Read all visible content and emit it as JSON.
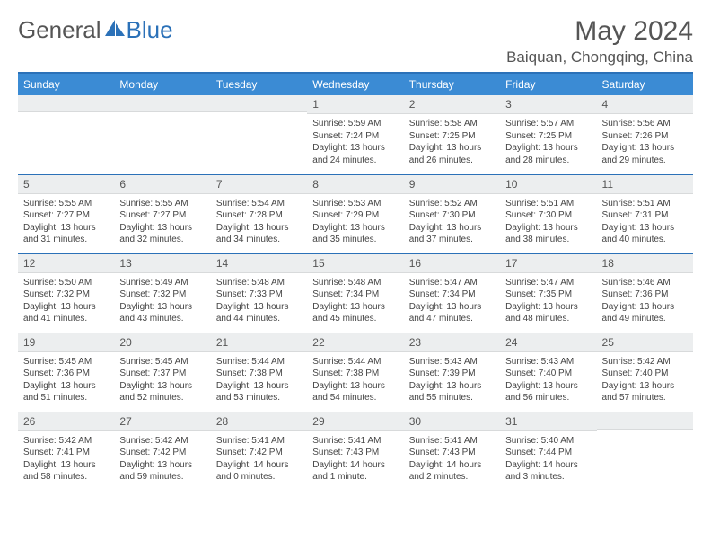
{
  "brand": {
    "name_part1": "General",
    "name_part2": "Blue"
  },
  "title": "May 2024",
  "location": "Baiquan, Chongqing, China",
  "day_headers": [
    "Sunday",
    "Monday",
    "Tuesday",
    "Wednesday",
    "Thursday",
    "Friday",
    "Saturday"
  ],
  "colors": {
    "header_bg": "#3b8bd4",
    "rule": "#2b71b8",
    "daynum_bg": "#eceeef"
  },
  "weeks": [
    [
      null,
      null,
      null,
      {
        "n": "1",
        "sr": "5:59 AM",
        "ss": "7:24 PM",
        "d": "13 hours and 24 minutes."
      },
      {
        "n": "2",
        "sr": "5:58 AM",
        "ss": "7:25 PM",
        "d": "13 hours and 26 minutes."
      },
      {
        "n": "3",
        "sr": "5:57 AM",
        "ss": "7:25 PM",
        "d": "13 hours and 28 minutes."
      },
      {
        "n": "4",
        "sr": "5:56 AM",
        "ss": "7:26 PM",
        "d": "13 hours and 29 minutes."
      }
    ],
    [
      {
        "n": "5",
        "sr": "5:55 AM",
        "ss": "7:27 PM",
        "d": "13 hours and 31 minutes."
      },
      {
        "n": "6",
        "sr": "5:55 AM",
        "ss": "7:27 PM",
        "d": "13 hours and 32 minutes."
      },
      {
        "n": "7",
        "sr": "5:54 AM",
        "ss": "7:28 PM",
        "d": "13 hours and 34 minutes."
      },
      {
        "n": "8",
        "sr": "5:53 AM",
        "ss": "7:29 PM",
        "d": "13 hours and 35 minutes."
      },
      {
        "n": "9",
        "sr": "5:52 AM",
        "ss": "7:30 PM",
        "d": "13 hours and 37 minutes."
      },
      {
        "n": "10",
        "sr": "5:51 AM",
        "ss": "7:30 PM",
        "d": "13 hours and 38 minutes."
      },
      {
        "n": "11",
        "sr": "5:51 AM",
        "ss": "7:31 PM",
        "d": "13 hours and 40 minutes."
      }
    ],
    [
      {
        "n": "12",
        "sr": "5:50 AM",
        "ss": "7:32 PM",
        "d": "13 hours and 41 minutes."
      },
      {
        "n": "13",
        "sr": "5:49 AM",
        "ss": "7:32 PM",
        "d": "13 hours and 43 minutes."
      },
      {
        "n": "14",
        "sr": "5:48 AM",
        "ss": "7:33 PM",
        "d": "13 hours and 44 minutes."
      },
      {
        "n": "15",
        "sr": "5:48 AM",
        "ss": "7:34 PM",
        "d": "13 hours and 45 minutes."
      },
      {
        "n": "16",
        "sr": "5:47 AM",
        "ss": "7:34 PM",
        "d": "13 hours and 47 minutes."
      },
      {
        "n": "17",
        "sr": "5:47 AM",
        "ss": "7:35 PM",
        "d": "13 hours and 48 minutes."
      },
      {
        "n": "18",
        "sr": "5:46 AM",
        "ss": "7:36 PM",
        "d": "13 hours and 49 minutes."
      }
    ],
    [
      {
        "n": "19",
        "sr": "5:45 AM",
        "ss": "7:36 PM",
        "d": "13 hours and 51 minutes."
      },
      {
        "n": "20",
        "sr": "5:45 AM",
        "ss": "7:37 PM",
        "d": "13 hours and 52 minutes."
      },
      {
        "n": "21",
        "sr": "5:44 AM",
        "ss": "7:38 PM",
        "d": "13 hours and 53 minutes."
      },
      {
        "n": "22",
        "sr": "5:44 AM",
        "ss": "7:38 PM",
        "d": "13 hours and 54 minutes."
      },
      {
        "n": "23",
        "sr": "5:43 AM",
        "ss": "7:39 PM",
        "d": "13 hours and 55 minutes."
      },
      {
        "n": "24",
        "sr": "5:43 AM",
        "ss": "7:40 PM",
        "d": "13 hours and 56 minutes."
      },
      {
        "n": "25",
        "sr": "5:42 AM",
        "ss": "7:40 PM",
        "d": "13 hours and 57 minutes."
      }
    ],
    [
      {
        "n": "26",
        "sr": "5:42 AM",
        "ss": "7:41 PM",
        "d": "13 hours and 58 minutes."
      },
      {
        "n": "27",
        "sr": "5:42 AM",
        "ss": "7:42 PM",
        "d": "13 hours and 59 minutes."
      },
      {
        "n": "28",
        "sr": "5:41 AM",
        "ss": "7:42 PM",
        "d": "14 hours and 0 minutes."
      },
      {
        "n": "29",
        "sr": "5:41 AM",
        "ss": "7:43 PM",
        "d": "14 hours and 1 minute."
      },
      {
        "n": "30",
        "sr": "5:41 AM",
        "ss": "7:43 PM",
        "d": "14 hours and 2 minutes."
      },
      {
        "n": "31",
        "sr": "5:40 AM",
        "ss": "7:44 PM",
        "d": "14 hours and 3 minutes."
      },
      null
    ]
  ],
  "labels": {
    "sunrise": "Sunrise:",
    "sunset": "Sunset:",
    "daylight": "Daylight:"
  }
}
